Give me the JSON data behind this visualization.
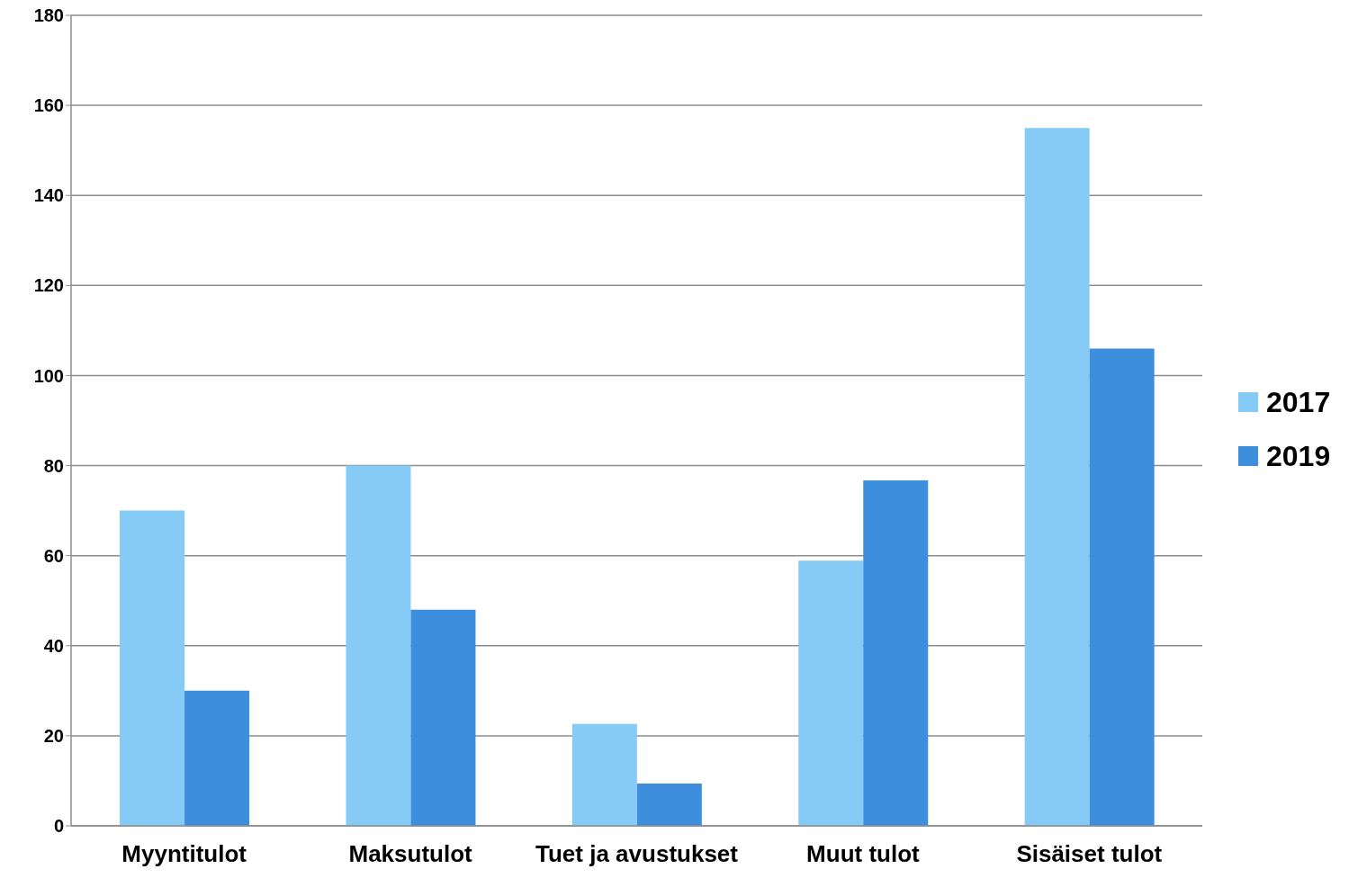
{
  "chart_data": {
    "type": "bar",
    "categories": [
      "Myyntitulot",
      "Maksutulot",
      "Tuet ja avustukset",
      "Muut tulot",
      "Sisäiset tulot"
    ],
    "series": [
      {
        "name": "2017",
        "color": "#85cbf5",
        "values": [
          70,
          80,
          22.6,
          58.9,
          155
        ]
      },
      {
        "name": "2019",
        "color": "#3d8fdd",
        "values": [
          30,
          48,
          9.4,
          76.7,
          106
        ]
      }
    ],
    "ylim": [
      0,
      180
    ],
    "yticks": [
      0,
      20,
      40,
      60,
      80,
      100,
      120,
      140,
      160,
      180
    ],
    "grid": "y",
    "legend": "right"
  }
}
